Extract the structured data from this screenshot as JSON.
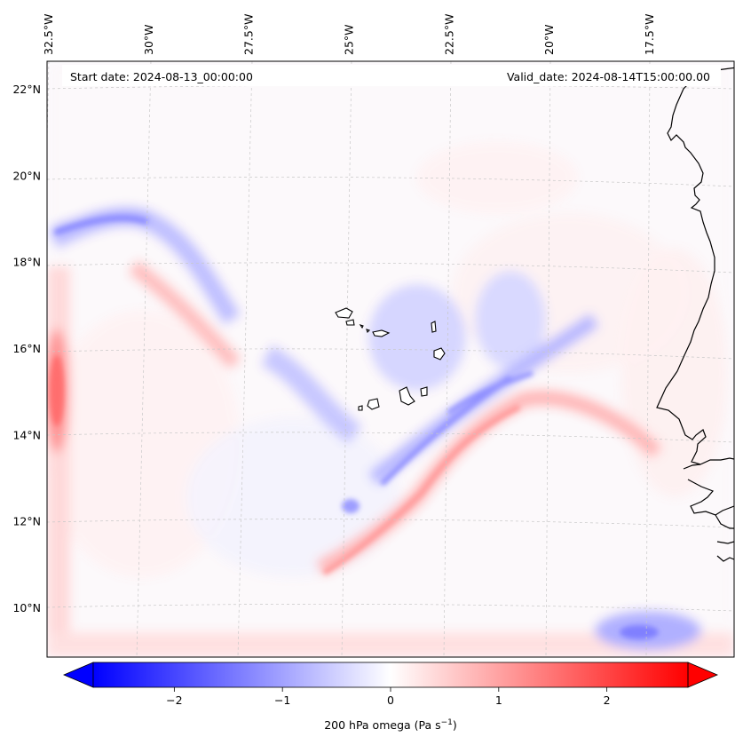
{
  "header": {
    "start_date": "Start date: 2024-08-13_00:00:00",
    "valid_date": "Valid_date: 2024-08-14T15:00:00.00"
  },
  "longitudes": [
    {
      "label": "32.5°W",
      "value": -32.5
    },
    {
      "label": "30°W",
      "value": -30.0
    },
    {
      "label": "27.5°W",
      "value": -27.5
    },
    {
      "label": "25°W",
      "value": -25.0
    },
    {
      "label": "22.5°W",
      "value": -22.5
    },
    {
      "label": "20°W",
      "value": -20.0
    },
    {
      "label": "17.5°W",
      "value": -17.5
    }
  ],
  "latitudes": [
    {
      "label": "22°N",
      "value": 22
    },
    {
      "label": "20°N",
      "value": 20
    },
    {
      "label": "18°N",
      "value": 18
    },
    {
      "label": "16°N",
      "value": 16
    },
    {
      "label": "14°N",
      "value": 14
    },
    {
      "label": "12°N",
      "value": 12
    },
    {
      "label": "10°N",
      "value": 10
    }
  ],
  "colorbar": {
    "label": "200 hPa omega (Pa s⁻¹)",
    "ticks": [
      {
        "label": "−2",
        "value": -2
      },
      {
        "label": "−1",
        "value": -1
      },
      {
        "label": "0",
        "value": 0
      },
      {
        "label": "1",
        "value": 1
      },
      {
        "label": "2",
        "value": 2
      }
    ],
    "vmin": -2.75,
    "vmax": 2.75,
    "low_color": "#0000ff",
    "mid_color": "#ffffff",
    "high_color": "#ff0000"
  },
  "colors": {
    "coastline": "#000000",
    "gridline": "#c8c8c8",
    "ascent": "#6b6bff",
    "descent": "#ff6b6b"
  }
}
